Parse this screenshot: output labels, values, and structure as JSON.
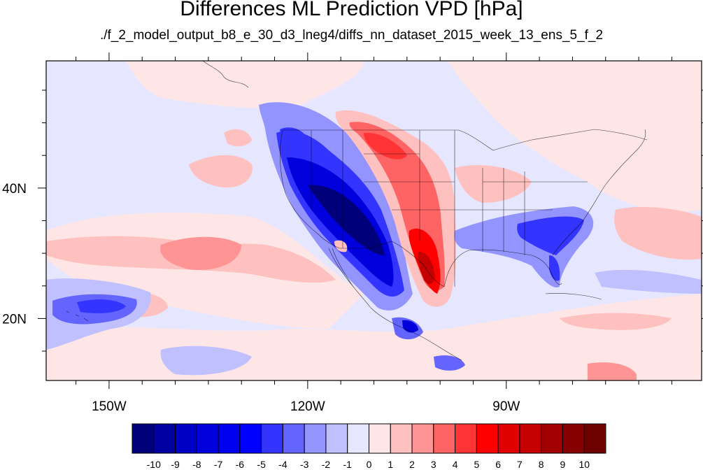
{
  "title": "Differences ML Prediction VPD [hPa]",
  "subtitle": "./f_2_model_output_b8_e_30_d3_lneg4/diffs_nn_dataset_2015_week_13_ens_5_f_2",
  "axes": {
    "lon_ticks": [
      {
        "value": -150,
        "label": "150W"
      },
      {
        "value": -120,
        "label": "120W"
      },
      {
        "value": -90,
        "label": "90W"
      }
    ],
    "lat_ticks": [
      {
        "value": 40,
        "label": "40N"
      },
      {
        "value": 20,
        "label": "20N"
      }
    ]
  },
  "colorbar": {
    "labels": [
      "-10",
      "-9",
      "-8",
      "-7",
      "-6",
      "-5",
      "-4",
      "-3",
      "-2",
      "-1",
      "0",
      "1",
      "2",
      "3",
      "4",
      "5",
      "6",
      "7",
      "8",
      "9",
      "10"
    ],
    "colors": [
      "#00007a",
      "#0000a0",
      "#0000c4",
      "#0000dd",
      "#0000f0",
      "#0000ff",
      "#3434ff",
      "#6464ff",
      "#9494ff",
      "#c0c0ff",
      "#e6e6ff",
      "#ffe6e6",
      "#ffc0c0",
      "#ff9494",
      "#ff6464",
      "#ff3434",
      "#ff0000",
      "#e00000",
      "#c40000",
      "#a00000",
      "#880000",
      "#6e0000"
    ]
  },
  "chart_data": {
    "type": "heatmap",
    "title": "Differences ML Prediction VPD [hPa]",
    "subtitle": "./f_2_model_output_b8_e_30_d3_lneg4/diffs_nn_dataset_2015_week_13_ens_5_f_2",
    "lon_range": [
      -159.5,
      -60.5
    ],
    "lat_range": [
      10.5,
      59.5
    ],
    "units": "hPa",
    "value_range": [
      -10,
      10
    ],
    "regions": [
      {
        "name": "US Southwest / Great Basin",
        "approx_value": -9
      },
      {
        "name": "Pacific Northwest",
        "approx_value": -6
      },
      {
        "name": "Southern Great Plains / Texas",
        "approx_value": 6
      },
      {
        "name": "Northern Great Plains",
        "approx_value": 4
      },
      {
        "name": "Southeast US / Florida",
        "approx_value": -5
      },
      {
        "name": "Hawaii region",
        "approx_value": -3
      },
      {
        "name": "Central Pacific band",
        "approx_value": 2
      }
    ]
  }
}
